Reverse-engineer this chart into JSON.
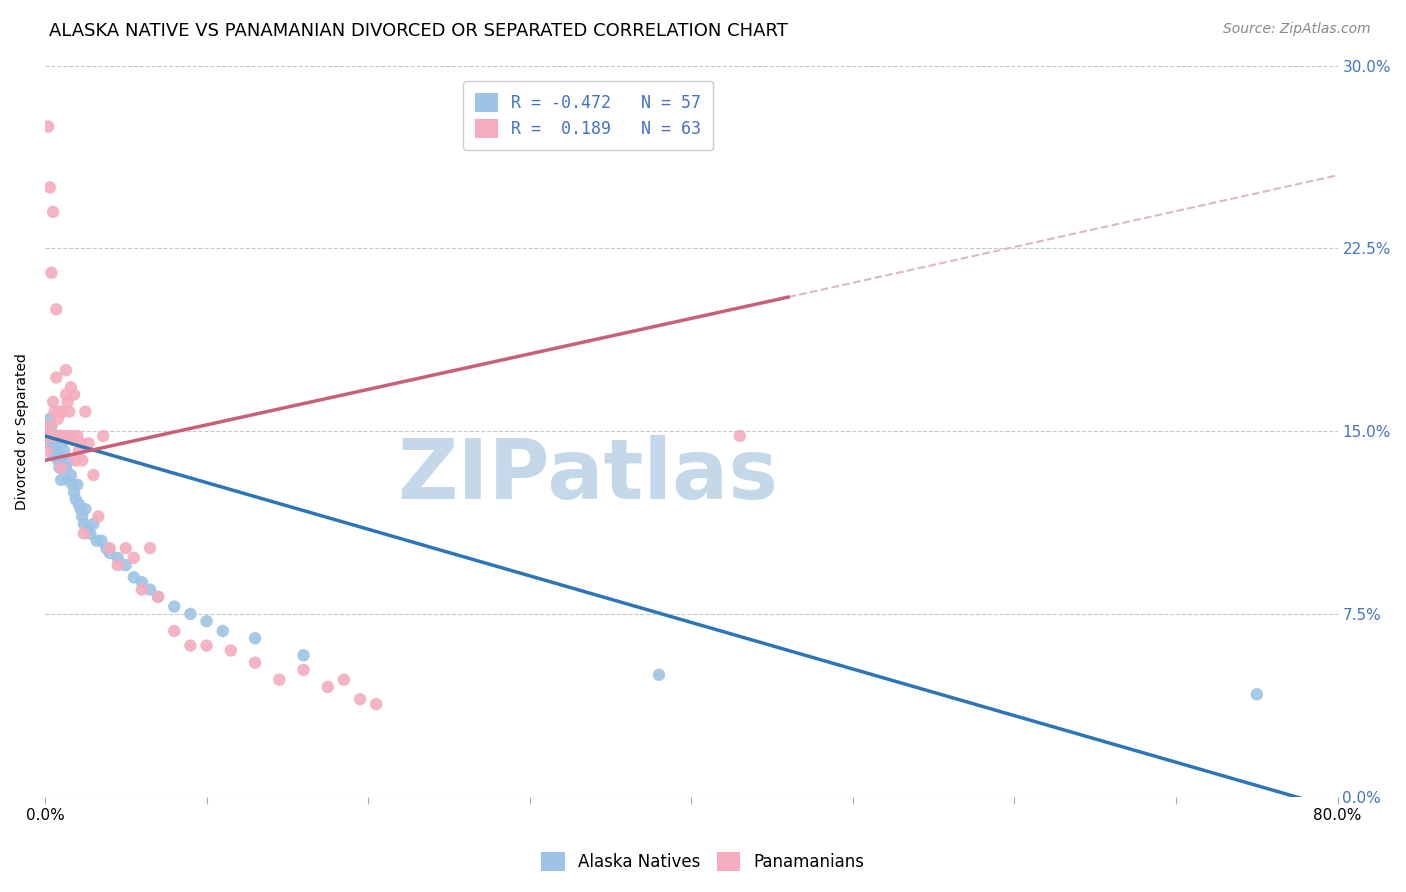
{
  "title": "ALASKA NATIVE VS PANAMANIAN DIVORCED OR SEPARATED CORRELATION CHART",
  "source": "Source: ZipAtlas.com",
  "ylabel": "Divorced or Separated",
  "watermark": "ZIPatlas",
  "legend_labels": [
    "Alaska Natives",
    "Panamanians"
  ],
  "legend_R_blue": "R = -0.472",
  "legend_R_pink": "R =  0.189",
  "legend_N_blue": "N = 57",
  "legend_N_pink": "N = 63",
  "scatter_blue_x": [
    0.001,
    0.002,
    0.003,
    0.003,
    0.004,
    0.004,
    0.005,
    0.005,
    0.005,
    0.006,
    0.006,
    0.007,
    0.007,
    0.008,
    0.008,
    0.009,
    0.009,
    0.01,
    0.01,
    0.01,
    0.011,
    0.012,
    0.012,
    0.013,
    0.014,
    0.015,
    0.016,
    0.017,
    0.018,
    0.019,
    0.02,
    0.021,
    0.022,
    0.023,
    0.024,
    0.025,
    0.027,
    0.028,
    0.03,
    0.032,
    0.035,
    0.038,
    0.04,
    0.045,
    0.05,
    0.055,
    0.06,
    0.065,
    0.07,
    0.08,
    0.09,
    0.1,
    0.11,
    0.13,
    0.16,
    0.38,
    0.75
  ],
  "scatter_blue_y": [
    0.148,
    0.145,
    0.155,
    0.15,
    0.145,
    0.152,
    0.145,
    0.148,
    0.14,
    0.145,
    0.148,
    0.142,
    0.148,
    0.138,
    0.145,
    0.14,
    0.135,
    0.145,
    0.138,
    0.13,
    0.135,
    0.148,
    0.142,
    0.135,
    0.13,
    0.138,
    0.132,
    0.128,
    0.125,
    0.122,
    0.128,
    0.12,
    0.118,
    0.115,
    0.112,
    0.118,
    0.11,
    0.108,
    0.112,
    0.105,
    0.105,
    0.102,
    0.1,
    0.098,
    0.095,
    0.09,
    0.088,
    0.085,
    0.082,
    0.078,
    0.075,
    0.072,
    0.068,
    0.065,
    0.058,
    0.05,
    0.042
  ],
  "scatter_pink_x": [
    0.001,
    0.001,
    0.002,
    0.002,
    0.003,
    0.003,
    0.004,
    0.004,
    0.005,
    0.005,
    0.005,
    0.006,
    0.006,
    0.007,
    0.007,
    0.007,
    0.008,
    0.008,
    0.009,
    0.009,
    0.01,
    0.01,
    0.011,
    0.011,
    0.012,
    0.013,
    0.013,
    0.014,
    0.015,
    0.015,
    0.016,
    0.017,
    0.018,
    0.019,
    0.02,
    0.021,
    0.022,
    0.023,
    0.024,
    0.025,
    0.027,
    0.03,
    0.033,
    0.036,
    0.04,
    0.045,
    0.05,
    0.055,
    0.06,
    0.065,
    0.07,
    0.08,
    0.09,
    0.1,
    0.115,
    0.13,
    0.145,
    0.16,
    0.175,
    0.185,
    0.195,
    0.205,
    0.43
  ],
  "scatter_pink_y": [
    0.148,
    0.142,
    0.148,
    0.275,
    0.152,
    0.25,
    0.148,
    0.215,
    0.148,
    0.162,
    0.24,
    0.148,
    0.158,
    0.148,
    0.172,
    0.2,
    0.148,
    0.155,
    0.148,
    0.158,
    0.148,
    0.135,
    0.148,
    0.158,
    0.148,
    0.165,
    0.175,
    0.162,
    0.148,
    0.158,
    0.168,
    0.148,
    0.165,
    0.138,
    0.148,
    0.142,
    0.145,
    0.138,
    0.108,
    0.158,
    0.145,
    0.132,
    0.115,
    0.148,
    0.102,
    0.095,
    0.102,
    0.098,
    0.085,
    0.102,
    0.082,
    0.068,
    0.062,
    0.062,
    0.06,
    0.055,
    0.048,
    0.052,
    0.045,
    0.048,
    0.04,
    0.038,
    0.148
  ],
  "blue_color": "#9DC3E6",
  "pink_color": "#F4ACBE",
  "trendline_blue_color": "#2E75B6",
  "trendline_pink_color": "#C9607A",
  "trendline_pink_dash_color": "#DEB8C0",
  "trendline_blue_x0": 0.0,
  "trendline_blue_y0": 0.148,
  "trendline_blue_x1": 0.8,
  "trendline_blue_y1": -0.005,
  "trendline_pink_x0": 0.0,
  "trendline_pink_y0": 0.138,
  "trendline_pink_x1": 0.46,
  "trendline_pink_y1": 0.205,
  "trendline_pink_dash_x0": 0.46,
  "trendline_pink_dash_y0": 0.205,
  "trendline_pink_dash_x1": 0.8,
  "trendline_pink_dash_y1": 0.255,
  "xlim": [
    0.0,
    0.8
  ],
  "ylim": [
    0.0,
    0.3
  ],
  "xticks": [
    0.0,
    0.1,
    0.2,
    0.3,
    0.4,
    0.5,
    0.6,
    0.7,
    0.8
  ],
  "xtick_labels": [
    "0.0%",
    "",
    "",
    "",
    "",
    "",
    "",
    "",
    "80.0%"
  ],
  "yticks": [
    0.0,
    0.075,
    0.15,
    0.225,
    0.3
  ],
  "ytick_labels_right": [
    "0.0%",
    "7.5%",
    "15.0%",
    "22.5%",
    "30.0%"
  ],
  "grid_color": "#C8C8C8",
  "background_color": "#FFFFFF",
  "title_fontsize": 13,
  "axis_label_fontsize": 10,
  "tick_fontsize": 11,
  "legend_fontsize": 12,
  "source_fontsize": 10,
  "watermark_color": "#C5D8EA",
  "watermark_fontsize": 60,
  "right_tick_color": "#4472C4"
}
